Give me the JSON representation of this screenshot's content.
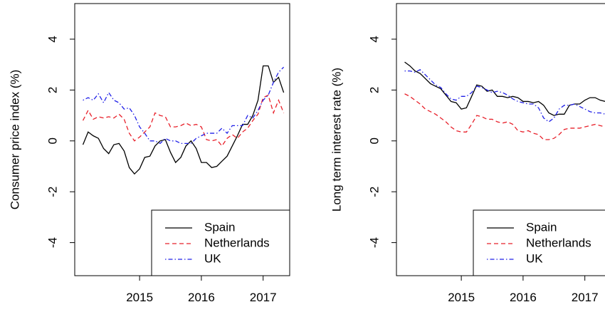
{
  "chart_data": [
    {
      "type": "line",
      "ylabel": "Consumer price index (%)",
      "x": [
        2014.083,
        2014.167,
        2014.25,
        2014.333,
        2014.417,
        2014.5,
        2014.583,
        2014.667,
        2014.75,
        2014.833,
        2014.917,
        2015,
        2015.083,
        2015.167,
        2015.25,
        2015.333,
        2015.417,
        2015.5,
        2015.583,
        2015.667,
        2015.75,
        2015.833,
        2015.917,
        2016,
        2016.083,
        2016.167,
        2016.25,
        2016.333,
        2016.417,
        2016.5,
        2016.583,
        2016.667,
        2016.75,
        2016.833,
        2016.917,
        2017,
        2017.083,
        2017.167,
        2017.25,
        2017.333
      ],
      "series": [
        {
          "name": "Spain",
          "color": "#000000",
          "linestyle": "solid",
          "values": [
            -0.15,
            0.35,
            0.2,
            0.1,
            -0.3,
            -0.5,
            -0.15,
            -0.1,
            -0.4,
            -1.05,
            -1.3,
            -1.1,
            -0.65,
            -0.6,
            -0.2,
            0.0,
            0.05,
            -0.45,
            -0.85,
            -0.65,
            -0.2,
            0.0,
            -0.3,
            -0.85,
            -0.85,
            -1.05,
            -1.0,
            -0.8,
            -0.6,
            -0.2,
            0.2,
            0.65,
            0.65,
            1.0,
            1.6,
            2.95,
            2.95,
            2.3,
            2.5,
            1.9
          ]
        },
        {
          "name": "Netherlands",
          "color": "#e8202a",
          "linestyle": "dashed",
          "values": [
            0.8,
            1.2,
            0.85,
            0.95,
            0.9,
            0.95,
            0.9,
            1.05,
            0.85,
            0.3,
            0.0,
            0.15,
            0.35,
            0.55,
            1.1,
            1.0,
            0.95,
            0.55,
            0.55,
            0.6,
            0.7,
            0.6,
            0.65,
            0.55,
            0.05,
            0.0,
            0.05,
            -0.2,
            0.1,
            0.25,
            0.1,
            0.35,
            0.5,
            0.8,
            1.05,
            1.7,
            1.8,
            1.1,
            1.6,
            1.1
          ]
        },
        {
          "name": "UK",
          "color": "#2020e8",
          "linestyle": "dotdash",
          "values": [
            1.6,
            1.7,
            1.6,
            1.85,
            1.5,
            1.9,
            1.6,
            1.5,
            1.25,
            1.3,
            1.0,
            0.55,
            0.3,
            0.0,
            0.0,
            -0.1,
            0.1,
            0.0,
            0.0,
            -0.1,
            -0.1,
            -0.1,
            0.1,
            0.2,
            0.3,
            0.3,
            0.3,
            0.5,
            0.3,
            0.6,
            0.6,
            0.6,
            1.0,
            0.9,
            1.2,
            1.6,
            1.8,
            2.3,
            2.7,
            2.9
          ]
        }
      ],
      "xlim": [
        2013.95,
        2017.43
      ],
      "xticks": [
        2015,
        2016,
        2017
      ],
      "ylim": [
        -5.3,
        5.4
      ],
      "yticks": [
        -4,
        -2,
        0,
        2,
        4
      ],
      "legend": "bottomright"
    },
    {
      "type": "line",
      "ylabel": "Long term interest rate (%)",
      "x": [
        2014.083,
        2014.167,
        2014.25,
        2014.333,
        2014.417,
        2014.5,
        2014.583,
        2014.667,
        2014.75,
        2014.833,
        2014.917,
        2015,
        2015.083,
        2015.167,
        2015.25,
        2015.333,
        2015.417,
        2015.5,
        2015.583,
        2015.667,
        2015.75,
        2015.833,
        2015.917,
        2016,
        2016.083,
        2016.167,
        2016.25,
        2016.333,
        2016.417,
        2016.5,
        2016.583,
        2016.667,
        2016.75,
        2016.833,
        2016.917,
        2017,
        2017.083,
        2017.167,
        2017.25,
        2017.333
      ],
      "series": [
        {
          "name": "Spain",
          "color": "#000000",
          "linestyle": "solid",
          "values": [
            3.1,
            2.95,
            2.75,
            2.65,
            2.45,
            2.25,
            2.15,
            2.05,
            1.8,
            1.55,
            1.5,
            1.25,
            1.3,
            1.75,
            2.2,
            2.15,
            1.95,
            2.0,
            1.75,
            1.75,
            1.7,
            1.75,
            1.7,
            1.55,
            1.55,
            1.5,
            1.55,
            1.4,
            1.1,
            1.0,
            1.05,
            1.05,
            1.4,
            1.45,
            1.45,
            1.6,
            1.7,
            1.7,
            1.6,
            1.55
          ]
        },
        {
          "name": "Netherlands",
          "color": "#e8202a",
          "linestyle": "dashed",
          "values": [
            1.85,
            1.75,
            1.6,
            1.45,
            1.25,
            1.15,
            1.05,
            0.9,
            0.75,
            0.55,
            0.4,
            0.35,
            0.35,
            0.65,
            1.0,
            0.95,
            0.85,
            0.85,
            0.75,
            0.7,
            0.75,
            0.65,
            0.4,
            0.35,
            0.4,
            0.3,
            0.25,
            0.05,
            0.05,
            0.1,
            0.25,
            0.45,
            0.5,
            0.5,
            0.5,
            0.55,
            0.6,
            0.65,
            0.6,
            0.55
          ]
        },
        {
          "name": "UK",
          "color": "#2020e8",
          "linestyle": "dotdash",
          "values": [
            2.75,
            2.75,
            2.7,
            2.8,
            2.6,
            2.4,
            2.2,
            2.1,
            1.85,
            1.65,
            1.6,
            1.75,
            1.75,
            1.9,
            2.15,
            2.1,
            2.0,
            1.9,
            1.95,
            1.9,
            1.8,
            1.65,
            1.55,
            1.5,
            1.45,
            1.45,
            1.3,
            0.9,
            0.75,
            0.9,
            1.25,
            1.4,
            1.4,
            1.45,
            1.35,
            1.25,
            1.15,
            1.1,
            1.1,
            1.05
          ]
        }
      ],
      "xlim": [
        2013.95,
        2017.43
      ],
      "xticks": [
        2015,
        2016,
        2017
      ],
      "ylim": [
        -5.3,
        5.4
      ],
      "yticks": [
        -4,
        -2,
        0,
        2,
        4
      ],
      "legend": "bottomright"
    }
  ]
}
